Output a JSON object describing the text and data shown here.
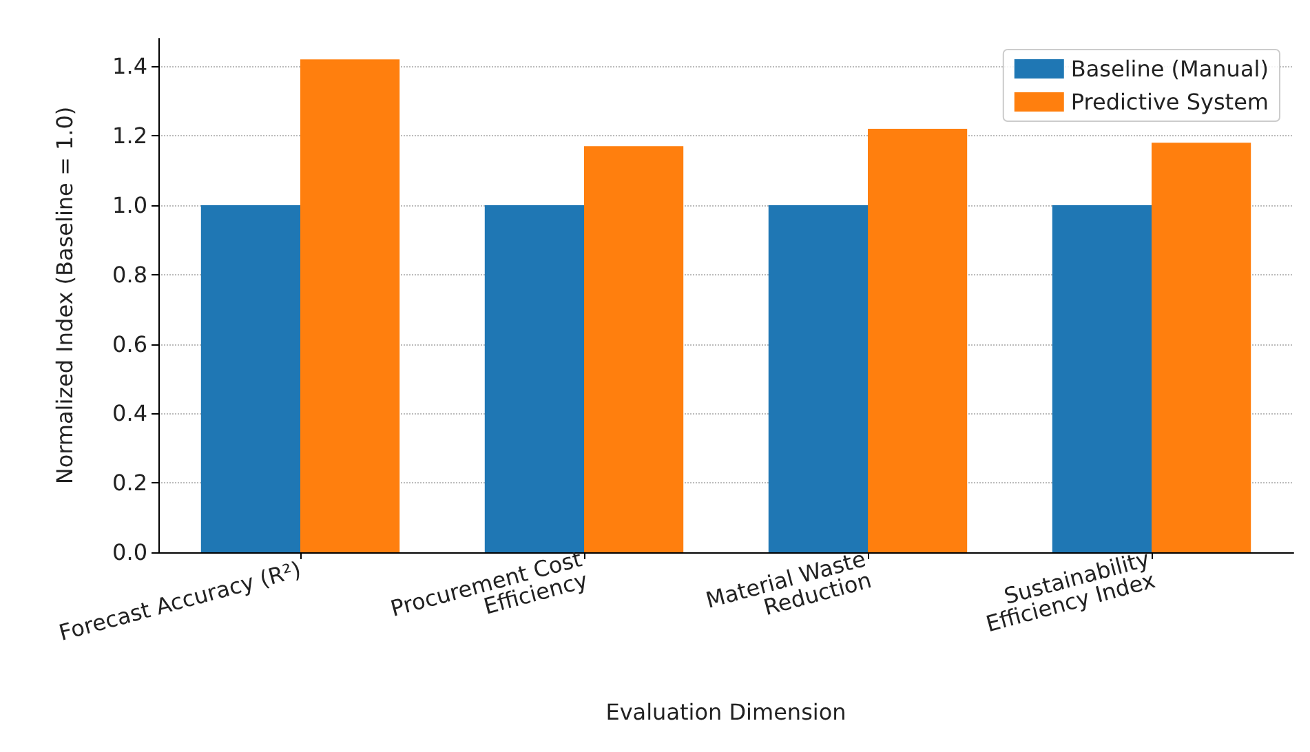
{
  "chart_data": {
    "type": "bar",
    "xlabel": "Evaluation Dimension",
    "ylabel": "Normalized Index (Baseline = 1.0)",
    "categories": [
      "Forecast Accuracy (R²)",
      "Procurement Cost\nEfficiency",
      "Material Waste\nReduction",
      "Sustainability\nEfficiency Index"
    ],
    "series": [
      {
        "name": "Baseline (Manual)",
        "color": "#1f77b4",
        "values": [
          1.0,
          1.0,
          1.0,
          1.0
        ]
      },
      {
        "name": "Predictive System",
        "color": "#ff7f0e",
        "values": [
          1.42,
          1.17,
          1.22,
          1.18
        ]
      }
    ],
    "ylim": [
      0,
      1.48
    ],
    "yticks": [
      {
        "value": 0,
        "label": "0.0"
      },
      {
        "value": 0.2,
        "label": "0.2"
      },
      {
        "value": 0.4,
        "label": "0.4"
      },
      {
        "value": 0.6,
        "label": "0.6"
      },
      {
        "value": 0.8,
        "label": "0.8"
      },
      {
        "value": 1.0,
        "label": "1.0"
      },
      {
        "value": 1.2,
        "label": "1.2"
      },
      {
        "value": 1.4,
        "label": "1.4"
      }
    ],
    "grid": "y",
    "legend": "top right"
  }
}
